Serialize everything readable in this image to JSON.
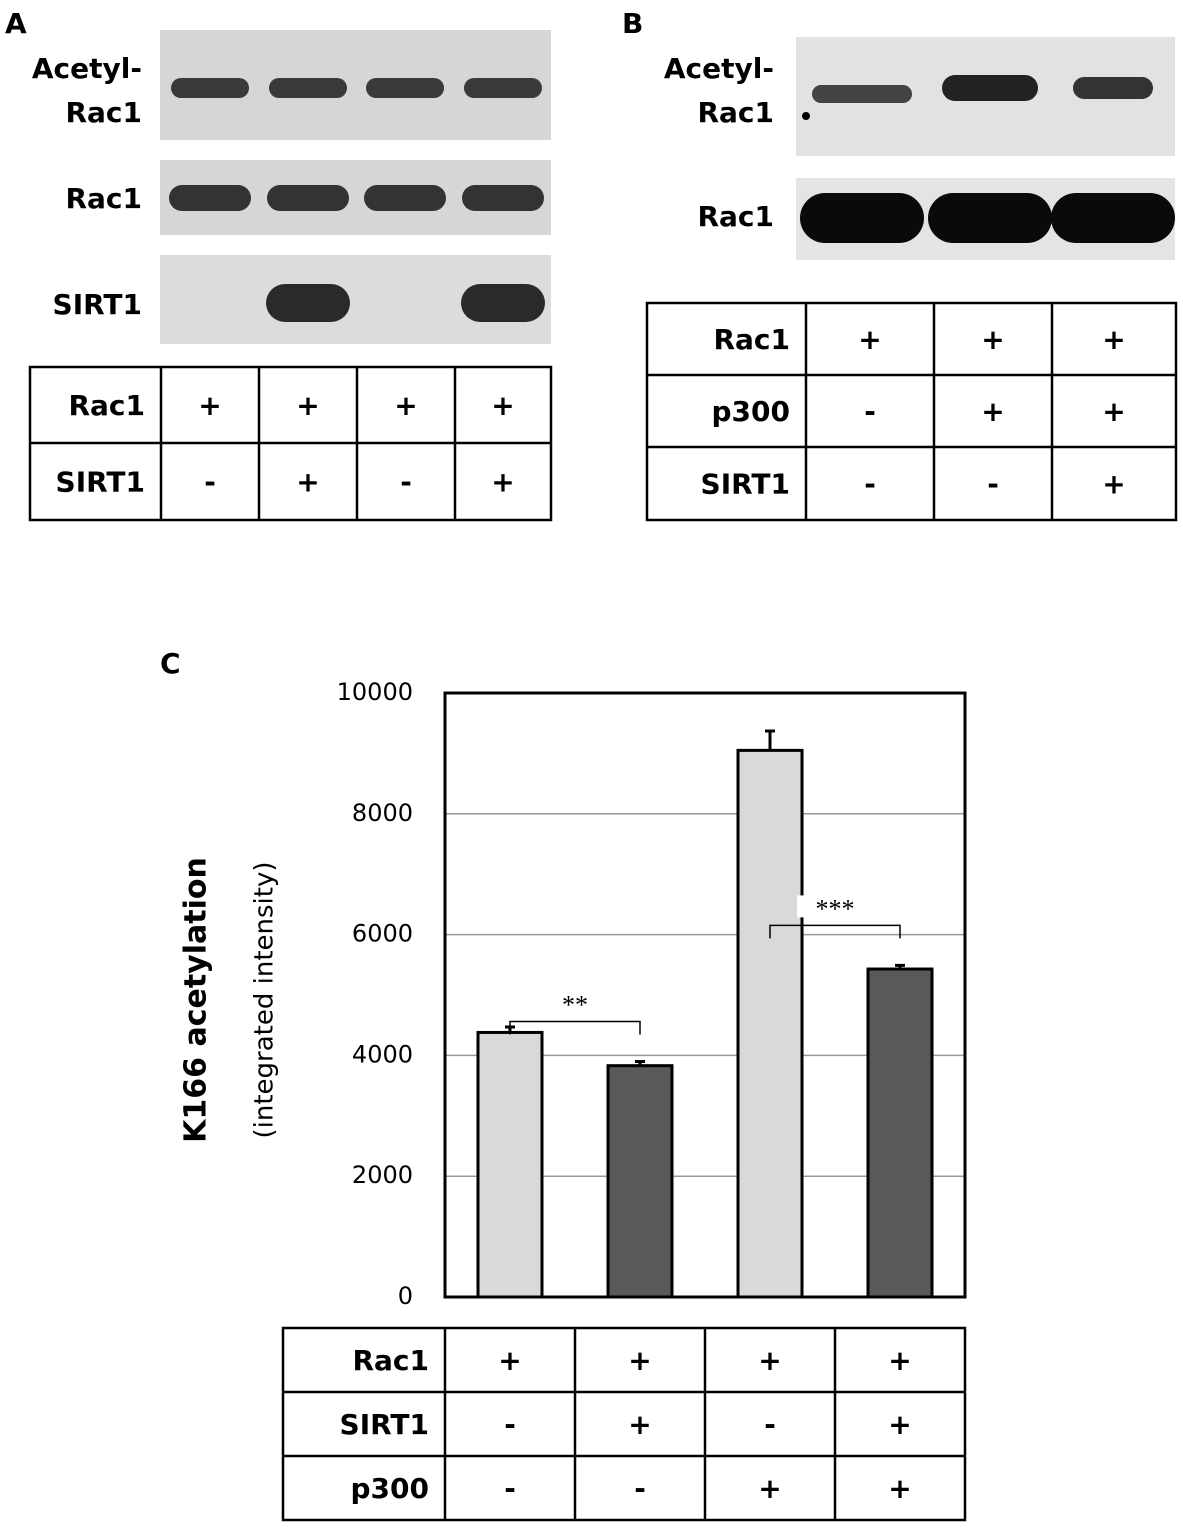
{
  "panels": [
    {
      "label": "A",
      "blot_labels": [
        [
          "Acetyl-",
          "Rac1"
        ],
        [
          "Rac1"
        ],
        [
          "SIRT1"
        ]
      ],
      "table": {
        "rows": [
          [
            "Rac1",
            "+",
            "+",
            "+",
            "+"
          ],
          [
            "SIRT1",
            "-",
            "+",
            "-",
            "+"
          ]
        ]
      }
    },
    {
      "label": "B",
      "blot_labels": [
        [
          "Acetyl-",
          "Rac1"
        ],
        [
          "Rac1"
        ]
      ],
      "table": {
        "rows": [
          [
            "Rac1",
            "+",
            "+",
            "+"
          ],
          [
            "p300",
            "-",
            "+",
            "+"
          ],
          [
            "SIRT1",
            "-",
            "-",
            "+"
          ]
        ]
      }
    }
  ],
  "chart_data": {
    "type": "bar",
    "label": "C",
    "ylabel": "K166 acetylation",
    "ylabel_sub": "(integrated intensity)",
    "categories": [
      null,
      null,
      null,
      null
    ],
    "values": [
      4380,
      3830,
      9050,
      5430
    ],
    "errors": [
      90,
      70,
      320,
      60
    ],
    "colors": [
      "#d9d9d9",
      "#595959",
      "#d9d9d9",
      "#595959"
    ],
    "ylim": [
      0,
      10000
    ],
    "yticks": [
      0,
      2000,
      4000,
      6000,
      8000,
      10000
    ],
    "grid": true,
    "annotations": [
      "**",
      "***"
    ],
    "condition_table": {
      "rows": [
        [
          "Rac1",
          "+",
          "+",
          "+",
          "+"
        ],
        [
          "SIRT1",
          "-",
          "+",
          "-",
          "+"
        ],
        [
          "p300",
          "-",
          "-",
          "+",
          "+"
        ]
      ]
    }
  }
}
